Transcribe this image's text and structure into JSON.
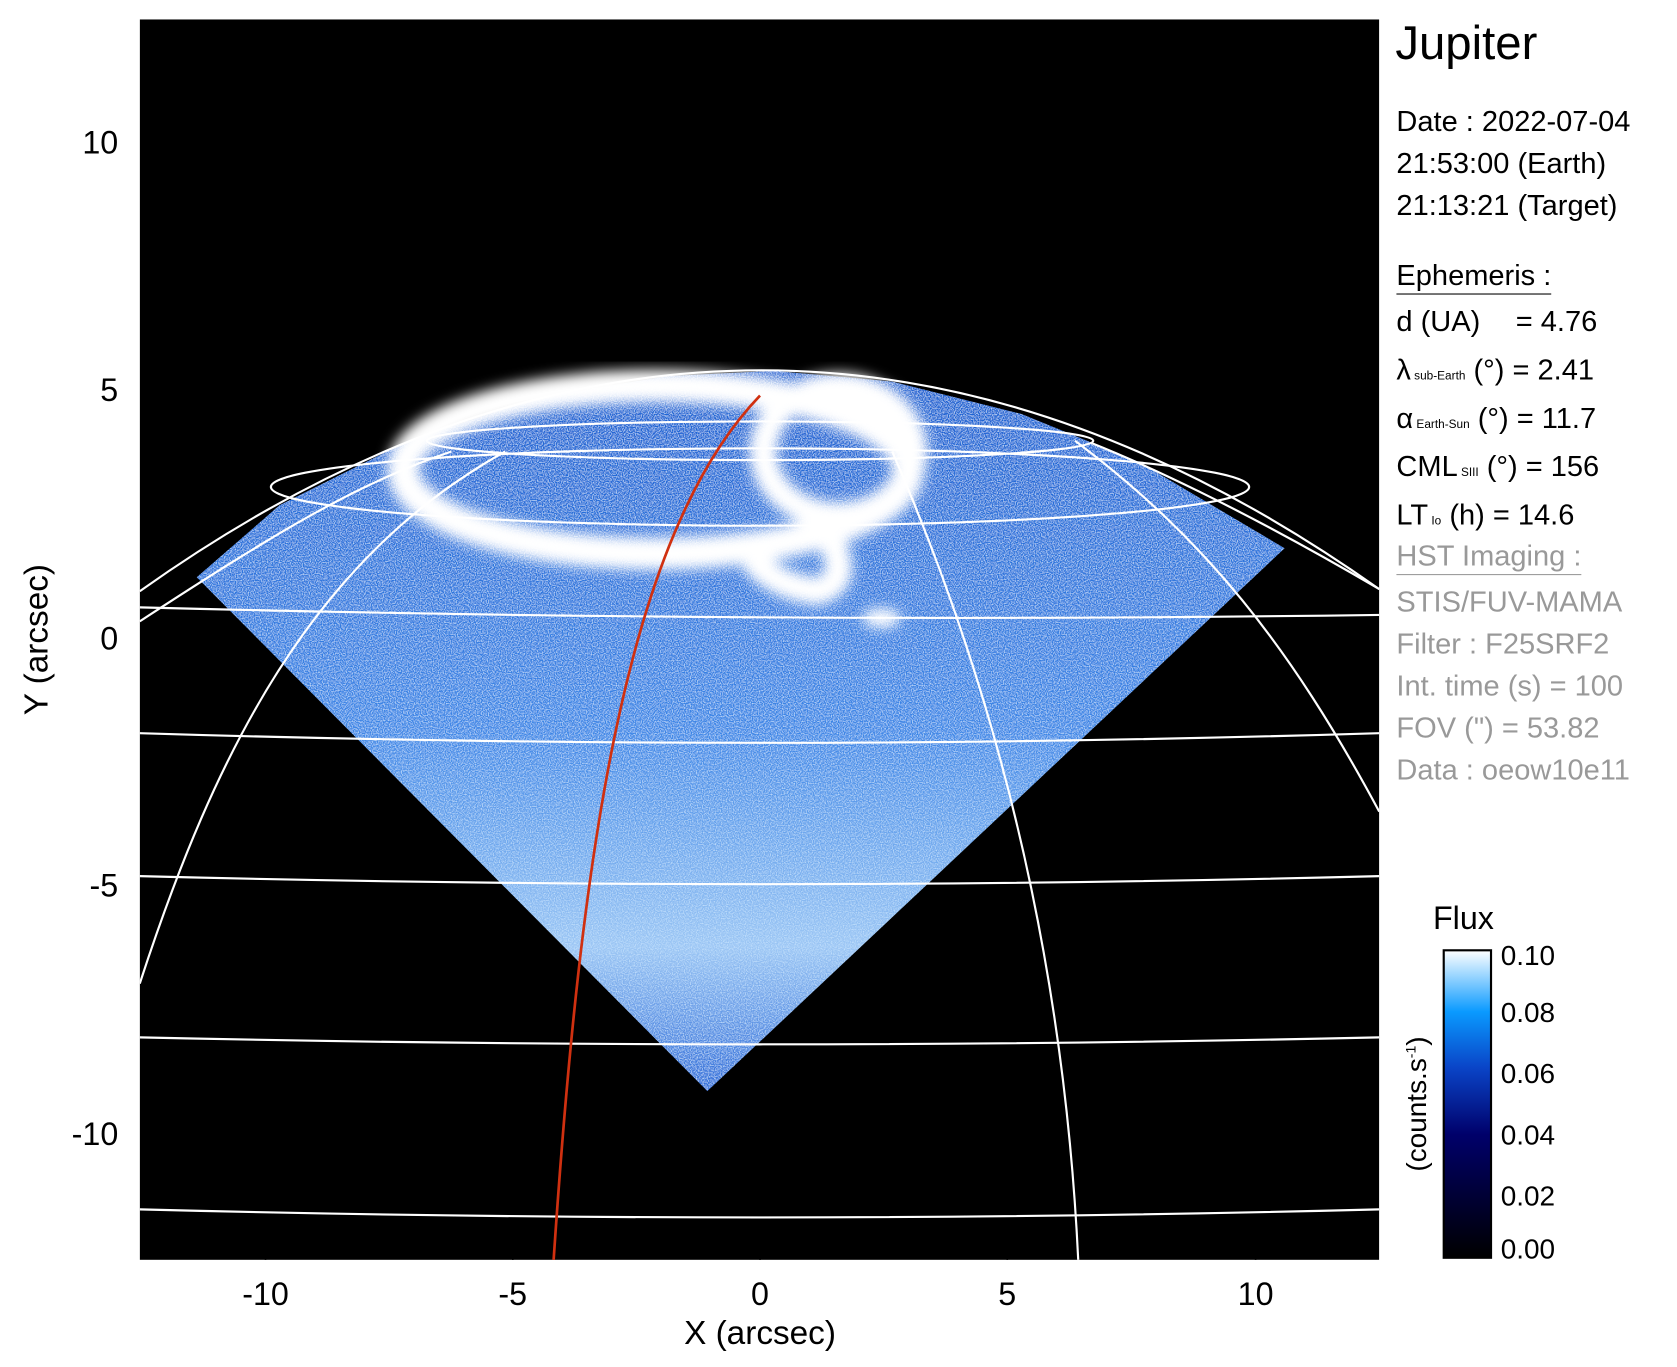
{
  "chart_data": {
    "type": "heatmap",
    "title": "Jupiter",
    "xlabel": "X (arcsec)",
    "ylabel": "Y (arcsec)",
    "xlim": [
      -12.5,
      12.5
    ],
    "ylim": [
      -12.5,
      12.5
    ],
    "xticks": [
      "-10",
      "-5",
      "0",
      "5",
      "10"
    ],
    "yticks": [
      "10",
      "5",
      "0",
      "-5",
      "-10"
    ],
    "xtick_values": [
      -10,
      -5,
      0,
      5,
      10
    ],
    "ytick_values": [
      10,
      5,
      0,
      -5,
      -10
    ],
    "grid": "planetographic latitude/longitude grid (white)",
    "reference_line_color": "#d03010",
    "colorbar": {
      "title": "Flux",
      "label": "(counts.s",
      "label_sup": "-1",
      "label_end": ")",
      "range": [
        0.0,
        0.1
      ],
      "ticks": [
        "0.10",
        "0.08",
        "0.06",
        "0.04",
        "0.02",
        "0.00"
      ],
      "tick_values": [
        0.1,
        0.08,
        0.06,
        0.04,
        0.02,
        0.0
      ],
      "colors": [
        "#000000",
        "#00006a",
        "#0a2fb0",
        "#0a90ff",
        "#ffffff"
      ],
      "placement": "right"
    }
  },
  "info": {
    "title": "Jupiter",
    "date_line": "Date : 2022-07-04",
    "earth_time": "21:53:00 (Earth)",
    "target_time": "21:13:21 (Target)",
    "ephemeris_header": "Ephemeris :",
    "eph": [
      {
        "sym": "d (UA)",
        "sub": "",
        "rest": "    = 4.76"
      },
      {
        "sym": "λ",
        "sub": "sub-Earth",
        "rest": " (°) = 2.41"
      },
      {
        "sym": "α",
        "sub": "Earth-Sun",
        "rest": " (°) = 11.7"
      },
      {
        "sym": "CML",
        "sub": "SIII",
        "rest": " (°) = 156"
      },
      {
        "sym": "LT",
        "sub": "Io",
        "rest": " (h) = 14.6"
      }
    ],
    "hst_header": "HST Imaging :",
    "hst": [
      "STIS/FUV-MAMA",
      "Filter : F25SRF2",
      "Int. time (s) = 100",
      "FOV (\") = 53.82",
      "Data : oeow10e11"
    ]
  }
}
